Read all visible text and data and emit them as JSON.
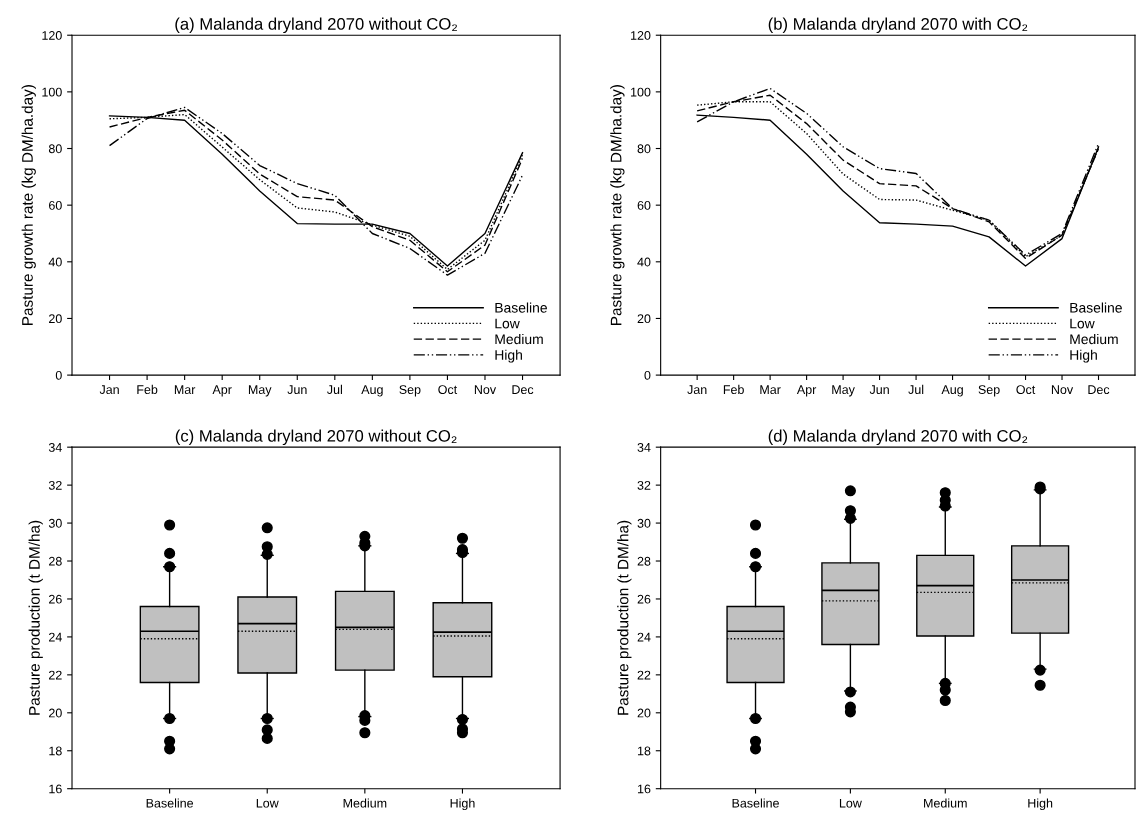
{
  "chart_data": [
    {
      "type": "line",
      "title": "(a) Malanda dryland 2070 without CO₂",
      "ylabel": "Pasture growth rate (kg DM/ha.day)",
      "categories": [
        "Jan",
        "Feb",
        "Mar",
        "Apr",
        "May",
        "Jun",
        "Jul",
        "Aug",
        "Sep",
        "Oct",
        "Nov",
        "Dec"
      ],
      "ylim": [
        0,
        120
      ],
      "yticks": [
        0,
        20,
        40,
        60,
        80,
        100,
        120
      ],
      "grid": false,
      "legend": "bottom right",
      "series": [
        {
          "name": "Baseline",
          "color": "#000000",
          "line_style": "solid",
          "values": [
            91.5,
            91,
            90,
            78,
            65,
            53.5,
            53.3,
            53.3,
            50,
            38.5,
            50,
            78.5
          ]
        },
        {
          "name": "Low",
          "color": "#000000",
          "line_style": "dotted",
          "values": [
            90.5,
            91,
            92,
            80.5,
            69,
            59,
            57.6,
            53,
            49,
            37.3,
            47.6,
            77.6
          ]
        },
        {
          "name": "Medium",
          "color": "#000000",
          "line_style": "dashed",
          "values": [
            87.6,
            91,
            93.5,
            83,
            71,
            63,
            61.8,
            52.4,
            47.6,
            36.5,
            45.9,
            76.5
          ]
        },
        {
          "name": "High",
          "color": "#000000",
          "line_style": "dashdot",
          "values": [
            81,
            90.6,
            94.5,
            85.3,
            74,
            67.6,
            63.5,
            50,
            44.7,
            35.3,
            43,
            70.6
          ]
        }
      ]
    },
    {
      "type": "line",
      "title": "(b) Malanda dryland 2070 with CO₂",
      "ylabel": "Pasture growth rate (kg DM/ha.day)",
      "categories": [
        "Jan",
        "Feb",
        "Mar",
        "Apr",
        "May",
        "Jun",
        "Jul",
        "Aug",
        "Sep",
        "Oct",
        "Nov",
        "Dec"
      ],
      "ylim": [
        0,
        120
      ],
      "yticks": [
        0,
        20,
        40,
        60,
        80,
        100,
        120
      ],
      "grid": false,
      "legend": "bottom right",
      "series": [
        {
          "name": "Baseline",
          "color": "#000000",
          "line_style": "solid",
          "values": [
            91.8,
            91,
            90,
            78,
            65,
            53.8,
            53.3,
            52.6,
            48.8,
            38.5,
            48.2,
            80.6
          ]
        },
        {
          "name": "Low",
          "color": "#000000",
          "line_style": "dotted",
          "values": [
            95.3,
            96.5,
            96.5,
            85.3,
            71,
            62,
            61.8,
            58.2,
            54.7,
            41.8,
            49.4,
            80
          ]
        },
        {
          "name": "Medium",
          "color": "#000000",
          "line_style": "dashed",
          "values": [
            93.3,
            96.5,
            98.8,
            88.8,
            75.9,
            67.6,
            66.8,
            58.8,
            54.1,
            41.2,
            49.4,
            80
          ]
        },
        {
          "name": "High",
          "color": "#000000",
          "line_style": "dashdot",
          "values": [
            89.4,
            96.5,
            101.2,
            92.4,
            80.6,
            72.9,
            71.2,
            58.8,
            54.7,
            42.4,
            50,
            81.8
          ]
        }
      ]
    },
    {
      "type": "box",
      "title": "(c) Malanda dryland 2070 without CO₂",
      "ylabel": "Pasture production (t DM/ha)",
      "categories": [
        "Baseline",
        "Low",
        "Medium",
        "High"
      ],
      "ylim": [
        16,
        34
      ],
      "yticks": [
        16,
        18,
        20,
        22,
        24,
        26,
        28,
        30,
        32,
        34
      ],
      "grid": false,
      "color": "#c0c0c0",
      "boxes": [
        {
          "low": 19.7,
          "q1": 21.6,
          "median": 24.3,
          "q3": 25.6,
          "high": 27.7,
          "mean": 23.9,
          "outliers": [
            29.9,
            28.4,
            27.7,
            19.7,
            18.5,
            18.1
          ]
        },
        {
          "low": 19.7,
          "q1": 22.1,
          "median": 24.7,
          "q3": 26.1,
          "high": 28.3,
          "mean": 24.3,
          "outliers": [
            29.75,
            28.75,
            28.35,
            19.7,
            19.1,
            18.65
          ]
        },
        {
          "low": 19.8,
          "q1": 22.25,
          "median": 24.5,
          "q3": 26.4,
          "high": 28.8,
          "mean": 24.4,
          "outliers": [
            29.3,
            28.95,
            28.8,
            19.85,
            19.6,
            18.95
          ]
        },
        {
          "low": 19.7,
          "q1": 21.9,
          "median": 24.25,
          "q3": 25.8,
          "high": 28.4,
          "mean": 24.05,
          "outliers": [
            29.2,
            28.6,
            28.45,
            19.65,
            19.15,
            18.95
          ]
        }
      ]
    },
    {
      "type": "box",
      "title": "(d) Malanda dryland 2070 with CO₂",
      "ylabel": "Pasture production (t DM/ha)",
      "categories": [
        "Baseline",
        "Low",
        "Medium",
        "High"
      ],
      "ylim": [
        16,
        34
      ],
      "yticks": [
        16,
        18,
        20,
        22,
        24,
        26,
        28,
        30,
        32,
        34
      ],
      "grid": false,
      "color": "#c0c0c0",
      "boxes": [
        {
          "low": 19.7,
          "q1": 21.6,
          "median": 24.3,
          "q3": 25.6,
          "high": 27.7,
          "mean": 23.9,
          "outliers": [
            29.9,
            28.4,
            27.7,
            19.7,
            18.5,
            18.1
          ]
        },
        {
          "low": 21.15,
          "q1": 23.6,
          "median": 26.45,
          "q3": 27.9,
          "high": 30.2,
          "mean": 25.9,
          "outliers": [
            31.7,
            30.65,
            30.25,
            21.1,
            20.3,
            20.05
          ]
        },
        {
          "low": 21.55,
          "q1": 24.05,
          "median": 26.7,
          "q3": 28.3,
          "high": 30.85,
          "mean": 26.35,
          "outliers": [
            31.6,
            31.2,
            30.9,
            21.55,
            21.2,
            20.65
          ]
        },
        {
          "low": 22.3,
          "q1": 24.2,
          "median": 27.0,
          "q3": 28.8,
          "high": 31.75,
          "mean": 26.85,
          "outliers": [
            31.9,
            31.8,
            22.25,
            21.45
          ]
        }
      ]
    }
  ]
}
